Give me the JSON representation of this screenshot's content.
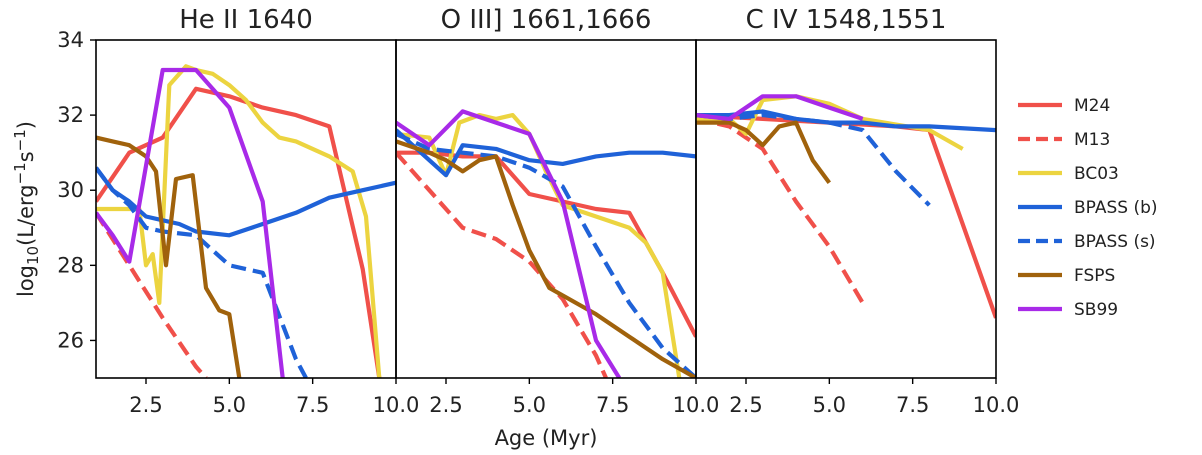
{
  "chart_data": {
    "type": "line",
    "xlabel": "Age (Myr)",
    "ylabel": "log10(L/erg^-1 s^-1)",
    "ylabel_parts": {
      "base": "log",
      "base_sub": "10",
      "open": "(L/erg",
      "sup1": "−1",
      "mid": "s",
      "sup2": "−1",
      "close": ")"
    },
    "xlim": [
      1,
      10
    ],
    "ylim": [
      25,
      34
    ],
    "yticks": [
      26,
      28,
      30,
      32,
      34
    ],
    "legend_position": "right, outside",
    "panels": [
      {
        "title": "He II 1640",
        "xticks": [
          "2.5",
          "5.0",
          "7.5",
          "10.0"
        ]
      },
      {
        "title": "O III] 1661,1666",
        "xticks": [
          "2.5",
          "5.0",
          "7.5",
          "10.0"
        ]
      },
      {
        "title": "C IV 1548,1551",
        "xticks": [
          "2.5",
          "5.0",
          "7.5",
          "10.0"
        ]
      }
    ],
    "series": [
      {
        "name": "M24",
        "color": "#f0504a",
        "dash": "solid",
        "data": [
          [
            [
              1,
              29.7
            ],
            [
              2,
              31.0
            ],
            [
              3,
              31.4
            ],
            [
              4,
              32.7
            ],
            [
              5,
              32.5
            ],
            [
              6,
              32.2
            ],
            [
              7,
              32.0
            ],
            [
              8,
              31.7
            ],
            [
              9,
              27.9
            ],
            [
              9.5,
              25
            ]
          ],
          [
            [
              1,
              31.0
            ],
            [
              2,
              31.0
            ],
            [
              3,
              30.9
            ],
            [
              4,
              30.9
            ],
            [
              5,
              29.9
            ],
            [
              6,
              29.7
            ],
            [
              7,
              29.5
            ],
            [
              8,
              29.4
            ],
            [
              9,
              27.8
            ],
            [
              10,
              26.1
            ]
          ],
          [
            [
              1,
              32.0
            ],
            [
              3,
              31.9
            ],
            [
              5,
              31.8
            ],
            [
              7,
              31.7
            ],
            [
              8,
              31.6
            ],
            [
              10,
              26.6
            ]
          ]
        ]
      },
      {
        "name": "M13",
        "color": "#f0504a",
        "dash": "dashed",
        "data": [
          [
            [
              1,
              29.4
            ],
            [
              2,
              28.0
            ],
            [
              3,
              26.6
            ],
            [
              4,
              25.3
            ],
            [
              4.3,
              25
            ]
          ],
          [
            [
              1,
              31.0
            ],
            [
              2,
              30.0
            ],
            [
              3,
              29.0
            ],
            [
              4,
              28.7
            ],
            [
              5,
              28.1
            ],
            [
              6,
              27.1
            ],
            [
              7,
              25.6
            ],
            [
              7.3,
              25
            ]
          ],
          [
            [
              1,
              31.9
            ],
            [
              2,
              31.7
            ],
            [
              3,
              31.1
            ],
            [
              4,
              29.7
            ],
            [
              5,
              28.5
            ],
            [
              6,
              27.0
            ]
          ]
        ]
      },
      {
        "name": "BC03",
        "color": "#ecd440",
        "dash": "solid",
        "data": [
          [
            [
              1,
              29.5
            ],
            [
              2,
              29.5
            ],
            [
              2.3,
              29.5
            ],
            [
              2.5,
              28.0
            ],
            [
              2.7,
              28.3
            ],
            [
              2.9,
              27.0
            ],
            [
              3.2,
              32.8
            ],
            [
              3.7,
              33.3
            ],
            [
              4,
              33.2
            ],
            [
              4.5,
              33.1
            ],
            [
              5,
              32.8
            ],
            [
              5.5,
              32.4
            ],
            [
              6,
              31.8
            ],
            [
              6.5,
              31.4
            ],
            [
              7,
              31.3
            ],
            [
              8,
              30.9
            ],
            [
              8.7,
              30.5
            ],
            [
              9.1,
              29.3
            ],
            [
              9.5,
              25
            ]
          ],
          [
            [
              1,
              31.5
            ],
            [
              2,
              31.4
            ],
            [
              2.5,
              30.4
            ],
            [
              2.9,
              31.8
            ],
            [
              3.5,
              32.0
            ],
            [
              4,
              31.9
            ],
            [
              4.5,
              32.0
            ],
            [
              5,
              31.5
            ],
            [
              5.5,
              30.5
            ],
            [
              6,
              29.6
            ],
            [
              7,
              29.3
            ],
            [
              8,
              29.0
            ],
            [
              8.5,
              28.6
            ],
            [
              9,
              27.8
            ],
            [
              9.5,
              25
            ]
          ],
          [
            [
              1,
              31.9
            ],
            [
              2,
              31.9
            ],
            [
              2.5,
              31.5
            ],
            [
              3,
              32.4
            ],
            [
              4,
              32.5
            ],
            [
              5,
              32.3
            ],
            [
              6,
              31.9
            ],
            [
              8,
              31.6
            ],
            [
              9,
              31.1
            ]
          ]
        ]
      },
      {
        "name": "BPASS (b)",
        "color": "#1f62d8",
        "dash": "solid",
        "data": [
          [
            [
              1,
              30.6
            ],
            [
              1.5,
              30.0
            ],
            [
              2,
              29.7
            ],
            [
              2.5,
              29.3
            ],
            [
              3,
              29.2
            ],
            [
              3.5,
              29.1
            ],
            [
              4,
              28.9
            ],
            [
              5,
              28.8
            ],
            [
              6,
              29.1
            ],
            [
              7,
              29.4
            ],
            [
              8,
              29.8
            ],
            [
              9,
              30.0
            ],
            [
              10,
              30.2
            ]
          ],
          [
            [
              1,
              31.6
            ],
            [
              2,
              30.8
            ],
            [
              2.5,
              30.4
            ],
            [
              3,
              31.2
            ],
            [
              4,
              31.1
            ],
            [
              5,
              30.8
            ],
            [
              6,
              30.7
            ],
            [
              7,
              30.9
            ],
            [
              8,
              31.0
            ],
            [
              9,
              31.0
            ],
            [
              10,
              30.9
            ]
          ],
          [
            [
              1,
              32.0
            ],
            [
              2,
              32.0
            ],
            [
              3,
              32.1
            ],
            [
              4,
              31.9
            ],
            [
              5,
              31.8
            ],
            [
              6,
              31.8
            ],
            [
              7,
              31.7
            ],
            [
              8,
              31.7
            ],
            [
              10,
              31.6
            ]
          ]
        ]
      },
      {
        "name": "BPASS (s)",
        "color": "#1f62d8",
        "dash": "dashed",
        "data": [
          [
            [
              1,
              30.6
            ],
            [
              1.5,
              30.0
            ],
            [
              2,
              29.6
            ],
            [
              2.5,
              29.0
            ],
            [
              3,
              28.9
            ],
            [
              4,
              28.8
            ],
            [
              5,
              28.0
            ],
            [
              6,
              27.8
            ],
            [
              7,
              25.5
            ],
            [
              7.3,
              25
            ]
          ],
          [
            [
              1,
              31.5
            ],
            [
              2,
              31.1
            ],
            [
              3,
              31.0
            ],
            [
              4,
              30.9
            ],
            [
              5,
              30.6
            ],
            [
              6,
              30.1
            ],
            [
              7,
              28.5
            ],
            [
              8,
              27.0
            ],
            [
              9,
              25.8
            ],
            [
              10,
              25
            ]
          ],
          [
            [
              1,
              32.0
            ],
            [
              2,
              31.9
            ],
            [
              3,
              32.0
            ],
            [
              4,
              31.9
            ],
            [
              5,
              31.8
            ],
            [
              6,
              31.6
            ],
            [
              7,
              30.5
            ],
            [
              8,
              29.6
            ]
          ]
        ]
      },
      {
        "name": "FSPS",
        "color": "#a0620c",
        "dash": "solid",
        "data": [
          [
            [
              1,
              31.4
            ],
            [
              1.5,
              31.3
            ],
            [
              2,
              31.2
            ],
            [
              2.5,
              30.9
            ],
            [
              2.8,
              30.5
            ],
            [
              3.1,
              28.0
            ],
            [
              3.4,
              30.3
            ],
            [
              3.9,
              30.4
            ],
            [
              4.3,
              27.4
            ],
            [
              4.7,
              26.8
            ],
            [
              5,
              26.7
            ],
            [
              5.3,
              25
            ]
          ],
          [
            [
              1,
              31.3
            ],
            [
              2,
              31.0
            ],
            [
              2.5,
              30.8
            ],
            [
              3,
              30.5
            ],
            [
              3.5,
              30.8
            ],
            [
              4,
              30.9
            ],
            [
              4.5,
              29.6
            ],
            [
              5,
              28.4
            ],
            [
              5.6,
              27.4
            ],
            [
              6,
              27.2
            ],
            [
              7,
              26.7
            ],
            [
              8,
              26.1
            ],
            [
              9,
              25.5
            ],
            [
              10,
              25
            ]
          ],
          [
            [
              1,
              31.8
            ],
            [
              2,
              31.8
            ],
            [
              2.5,
              31.6
            ],
            [
              3,
              31.2
            ],
            [
              3.5,
              31.7
            ],
            [
              4,
              31.8
            ],
            [
              4.5,
              30.8
            ],
            [
              5,
              30.2
            ]
          ]
        ]
      },
      {
        "name": "SB99",
        "color": "#a82ae8",
        "dash": "solid",
        "data": [
          [
            [
              1,
              29.4
            ],
            [
              1.5,
              28.8
            ],
            [
              2,
              28.1
            ],
            [
              3,
              33.2
            ],
            [
              3.5,
              33.2
            ],
            [
              4,
              33.2
            ],
            [
              5,
              32.2
            ],
            [
              6,
              29.7
            ],
            [
              6.6,
              25
            ]
          ],
          [
            [
              1,
              31.8
            ],
            [
              2,
              31.2
            ],
            [
              3,
              32.1
            ],
            [
              4,
              31.8
            ],
            [
              5,
              31.5
            ],
            [
              6,
              29.7
            ],
            [
              7,
              26.0
            ],
            [
              7.7,
              25
            ]
          ],
          [
            [
              1,
              32.0
            ],
            [
              2,
              31.9
            ],
            [
              3,
              32.5
            ],
            [
              4,
              32.5
            ],
            [
              5,
              32.2
            ],
            [
              6,
              31.9
            ]
          ]
        ]
      }
    ]
  }
}
